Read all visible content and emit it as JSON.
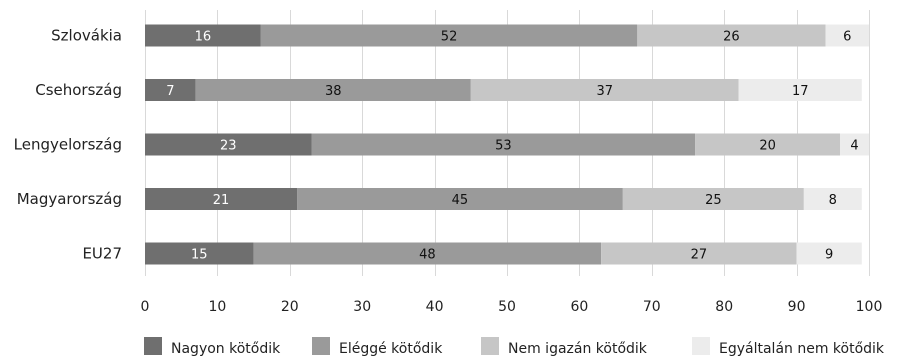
{
  "chart_data": {
    "type": "bar",
    "orientation": "horizontal",
    "stacked": true,
    "title": "",
    "xlabel": "",
    "ylabel": "",
    "xlim": [
      0,
      100
    ],
    "xticks": [
      0,
      10,
      20,
      30,
      40,
      50,
      60,
      70,
      80,
      90,
      100
    ],
    "grid": true,
    "legend_position": "bottom",
    "categories": [
      "Szlovákia",
      "Csehország",
      "Lengyelország",
      "Magyarország",
      "EU27"
    ],
    "series": [
      {
        "name": "Nagyon kötődik",
        "color": "#6f6f6f",
        "label_color": "#ffffff",
        "values": [
          16,
          7,
          23,
          21,
          15
        ]
      },
      {
        "name": "Eléggé kötődik",
        "color": "#9a9a9a",
        "label_color": "#111111",
        "values": [
          52,
          38,
          53,
          45,
          48
        ]
      },
      {
        "name": "Nem igazán kötődik",
        "color": "#c6c6c6",
        "label_color": "#111111",
        "values": [
          26,
          37,
          20,
          25,
          27
        ]
      },
      {
        "name": "Egyáltalán nem kötődik",
        "color": "#ececec",
        "label_color": "#111111",
        "values": [
          6,
          17,
          4,
          8,
          9
        ]
      }
    ]
  }
}
